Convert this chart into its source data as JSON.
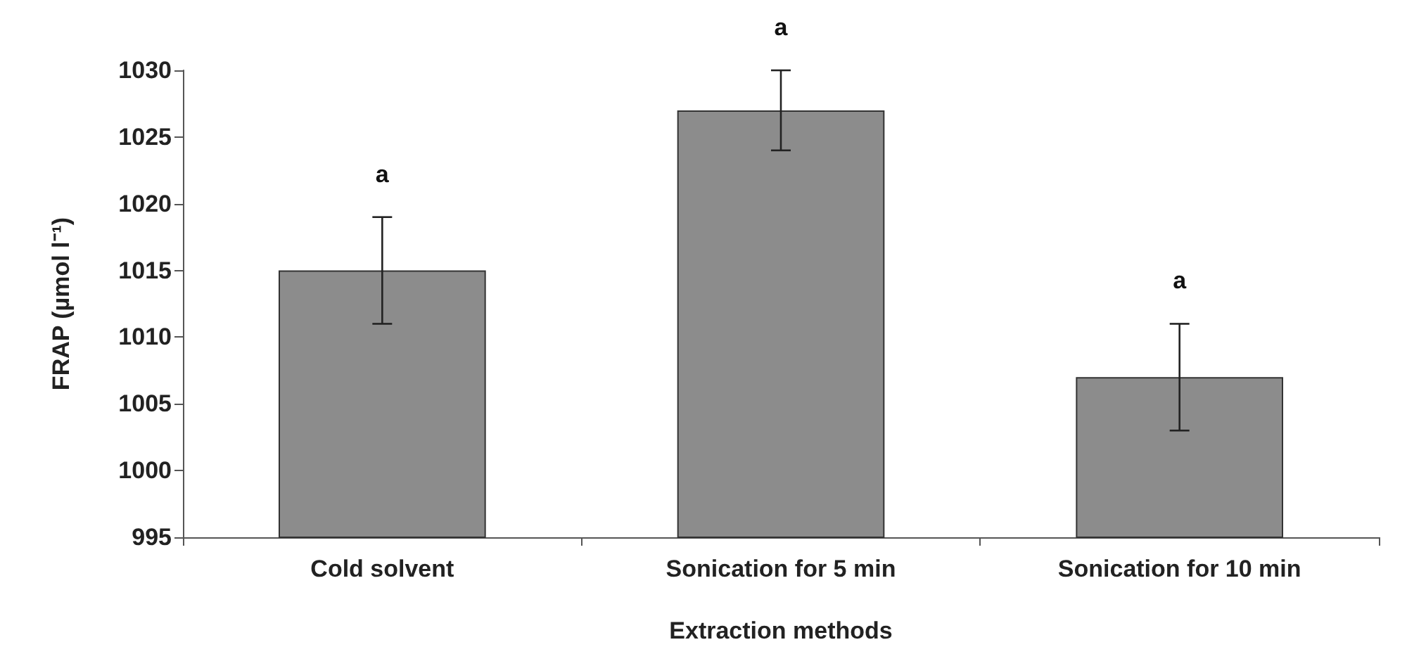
{
  "chart_data": {
    "type": "bar",
    "xlabel": "Extraction methods",
    "ylabel": "FRAP (µmol l⁻¹)",
    "categories": [
      "Cold solvent",
      "Sonication for 5 min",
      "Sonication for 10 min"
    ],
    "values": [
      1015,
      1027,
      1007
    ],
    "errors": [
      4,
      3,
      4
    ],
    "color": "#8c8c8c",
    "ylim": [
      995,
      1030
    ],
    "yticks": [
      995,
      1000,
      1005,
      1010,
      1015,
      1020,
      1025,
      1030
    ],
    "grid": false,
    "annotations": [
      "a",
      "a",
      "a"
    ]
  }
}
